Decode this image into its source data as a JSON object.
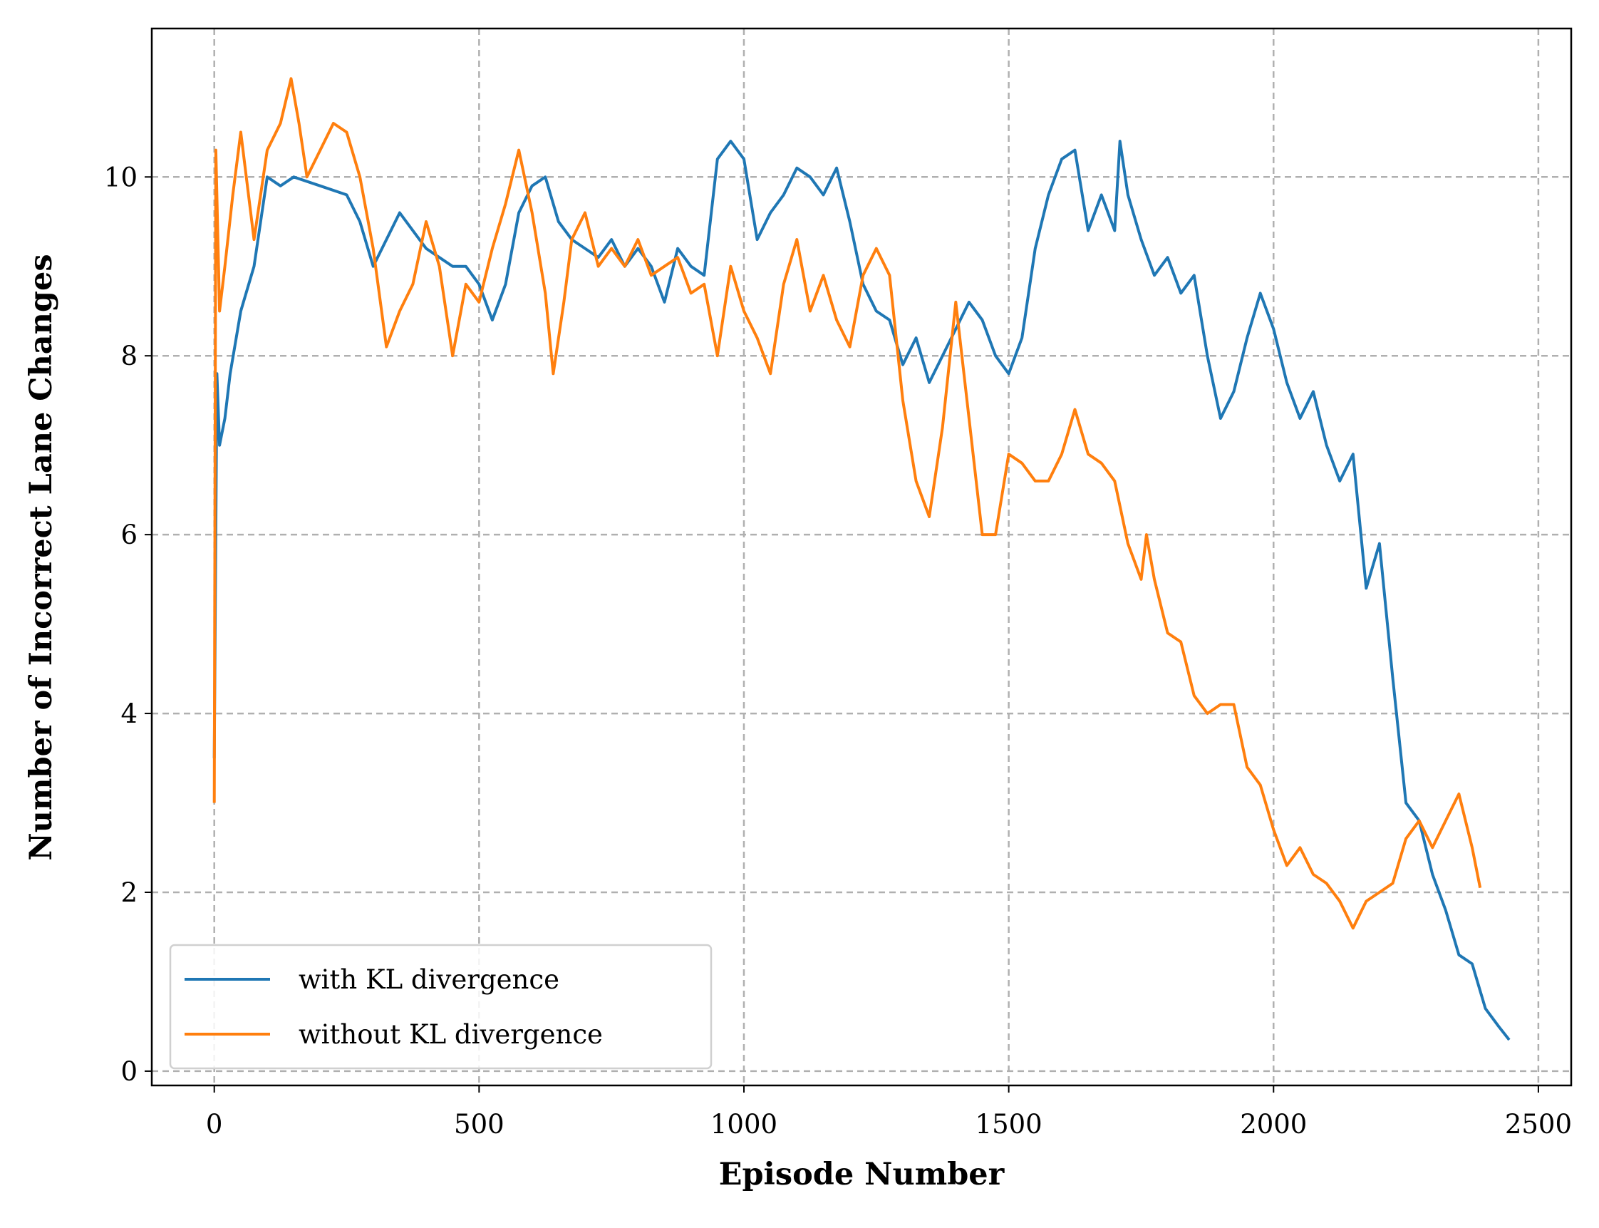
{
  "chart_data": {
    "type": "line",
    "x_label": "Episode Number",
    "y_label": "Number of Incorrect Lane Changes",
    "xlim": [
      -118,
      2562
    ],
    "ylim": [
      -0.16,
      11.66
    ],
    "xticks": [
      0,
      500,
      1000,
      1500,
      2000,
      2500
    ],
    "yticks": [
      0,
      2,
      4,
      6,
      8,
      10
    ],
    "grid": true,
    "legend": "lower left",
    "series": [
      {
        "name": "with KL divergence",
        "color": "#1f77b4",
        "x": [
          0,
          5,
          10,
          20,
          30,
          50,
          75,
          100,
          125,
          150,
          200,
          250,
          275,
          300,
          325,
          350,
          375,
          400,
          425,
          450,
          475,
          500,
          525,
          550,
          575,
          600,
          625,
          650,
          675,
          700,
          725,
          750,
          775,
          800,
          825,
          850,
          875,
          900,
          925,
          950,
          975,
          1000,
          1025,
          1050,
          1075,
          1100,
          1125,
          1150,
          1175,
          1200,
          1225,
          1250,
          1275,
          1300,
          1325,
          1350,
          1375,
          1400,
          1425,
          1450,
          1475,
          1500,
          1525,
          1550,
          1575,
          1600,
          1625,
          1650,
          1675,
          1700,
          1710,
          1725,
          1750,
          1775,
          1800,
          1825,
          1850,
          1875,
          1900,
          1925,
          1950,
          1975,
          2000,
          2025,
          2050,
          2075,
          2100,
          2125,
          2150,
          2175,
          2200,
          2225,
          2250,
          2275,
          2300,
          2325,
          2350,
          2375,
          2400,
          2425,
          2445
        ],
        "values": [
          3.5,
          7.8,
          7.0,
          7.3,
          7.8,
          8.5,
          9.0,
          10.0,
          9.9,
          10.0,
          9.9,
          9.8,
          9.5,
          9.0,
          9.3,
          9.6,
          9.4,
          9.2,
          9.1,
          9.0,
          9.0,
          8.8,
          8.4,
          8.8,
          9.6,
          9.9,
          10.0,
          9.5,
          9.3,
          9.2,
          9.1,
          9.3,
          9.0,
          9.2,
          9.0,
          8.6,
          9.2,
          9.0,
          8.9,
          10.2,
          10.4,
          10.2,
          9.3,
          9.6,
          9.8,
          10.1,
          10.0,
          9.8,
          10.1,
          9.5,
          8.8,
          8.5,
          8.4,
          7.9,
          8.2,
          7.7,
          8.0,
          8.3,
          8.6,
          8.4,
          8.0,
          7.8,
          8.2,
          9.2,
          9.8,
          10.2,
          10.3,
          9.4,
          9.8,
          9.4,
          10.4,
          9.8,
          9.3,
          8.9,
          9.1,
          8.7,
          8.9,
          8.0,
          7.3,
          7.6,
          8.2,
          8.7,
          8.3,
          7.7,
          7.3,
          7.6,
          7.0,
          6.6,
          6.9,
          5.4,
          5.9,
          4.4,
          3.0,
          2.8,
          2.2,
          1.8,
          1.3,
          1.2,
          0.7,
          0.5,
          0.35
        ]
      },
      {
        "name": "without KL divergence",
        "color": "#ff7f0e",
        "x": [
          0,
          3,
          10,
          20,
          35,
          50,
          75,
          100,
          125,
          145,
          160,
          175,
          200,
          225,
          250,
          275,
          300,
          325,
          350,
          375,
          400,
          425,
          450,
          475,
          500,
          525,
          550,
          575,
          600,
          625,
          640,
          660,
          675,
          700,
          725,
          750,
          775,
          800,
          825,
          850,
          875,
          900,
          925,
          950,
          975,
          1000,
          1025,
          1050,
          1075,
          1100,
          1125,
          1150,
          1175,
          1200,
          1225,
          1250,
          1275,
          1300,
          1325,
          1350,
          1375,
          1400,
          1425,
          1450,
          1475,
          1500,
          1525,
          1550,
          1575,
          1600,
          1625,
          1650,
          1675,
          1700,
          1725,
          1750,
          1760,
          1775,
          1800,
          1825,
          1850,
          1875,
          1900,
          1925,
          1950,
          1975,
          2000,
          2025,
          2050,
          2075,
          2100,
          2125,
          2150,
          2175,
          2200,
          2225,
          2250,
          2275,
          2300,
          2325,
          2350,
          2375,
          2390
        ],
        "values": [
          3.0,
          10.3,
          8.5,
          9.0,
          9.8,
          10.5,
          9.3,
          10.3,
          10.6,
          11.1,
          10.6,
          10.0,
          10.3,
          10.6,
          10.5,
          10.0,
          9.2,
          8.1,
          8.5,
          8.8,
          9.5,
          9.0,
          8.0,
          8.8,
          8.6,
          9.2,
          9.7,
          10.3,
          9.6,
          8.7,
          7.8,
          8.6,
          9.3,
          9.6,
          9.0,
          9.2,
          9.0,
          9.3,
          8.9,
          9.0,
          9.1,
          8.7,
          8.8,
          8.0,
          9.0,
          8.5,
          8.2,
          7.8,
          8.8,
          9.3,
          8.5,
          8.9,
          8.4,
          8.1,
          8.9,
          9.2,
          8.9,
          7.5,
          6.6,
          6.2,
          7.2,
          8.6,
          7.3,
          6.0,
          6.0,
          6.9,
          6.8,
          6.6,
          6.6,
          6.9,
          7.4,
          6.9,
          6.8,
          6.6,
          5.9,
          5.5,
          6.0,
          5.5,
          4.9,
          4.8,
          4.2,
          4.0,
          4.1,
          4.1,
          3.4,
          3.2,
          2.7,
          2.3,
          2.5,
          2.2,
          2.1,
          1.9,
          1.6,
          1.9,
          2.0,
          2.1,
          2.6,
          2.8,
          2.5,
          2.8,
          3.1,
          2.5,
          2.05
        ]
      }
    ]
  }
}
